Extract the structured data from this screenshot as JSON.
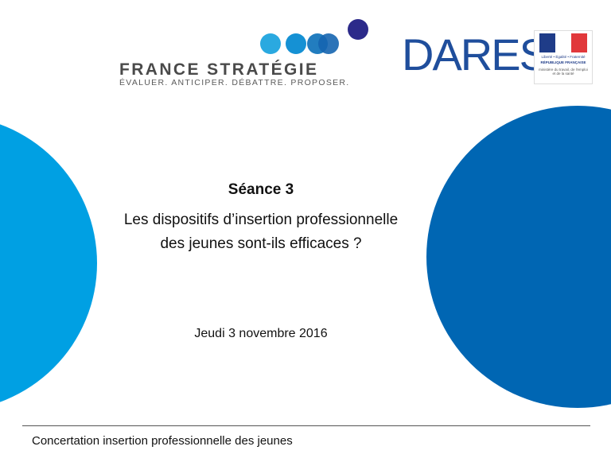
{
  "logos": {
    "france_strategie": {
      "name": "FRANCE STRATÉGIE",
      "tagline": "ÉVALUER. ANTICIPER. DÉBATTRE. PROPOSER."
    },
    "dares": {
      "name": "DARES"
    },
    "marianne": {
      "motto": "Liberté • Égalité • Fraternité",
      "republic": "RÉPUBLIQUE FRANÇAISE",
      "ministry": "ministère du travail, de l'emploi et de la santé"
    }
  },
  "slide": {
    "session": "Séance 3",
    "title": "Les dispositifs d’insertion professionnelle des jeunes sont-ils efficaces ?",
    "date": "Jeudi 3 novembre 2016"
  },
  "footer": {
    "text": "Concertation insertion professionnelle des jeunes"
  },
  "colors": {
    "left_circle": "#00a0e3",
    "right_circle": "#0066b3",
    "dares": "#1f4e9c"
  }
}
